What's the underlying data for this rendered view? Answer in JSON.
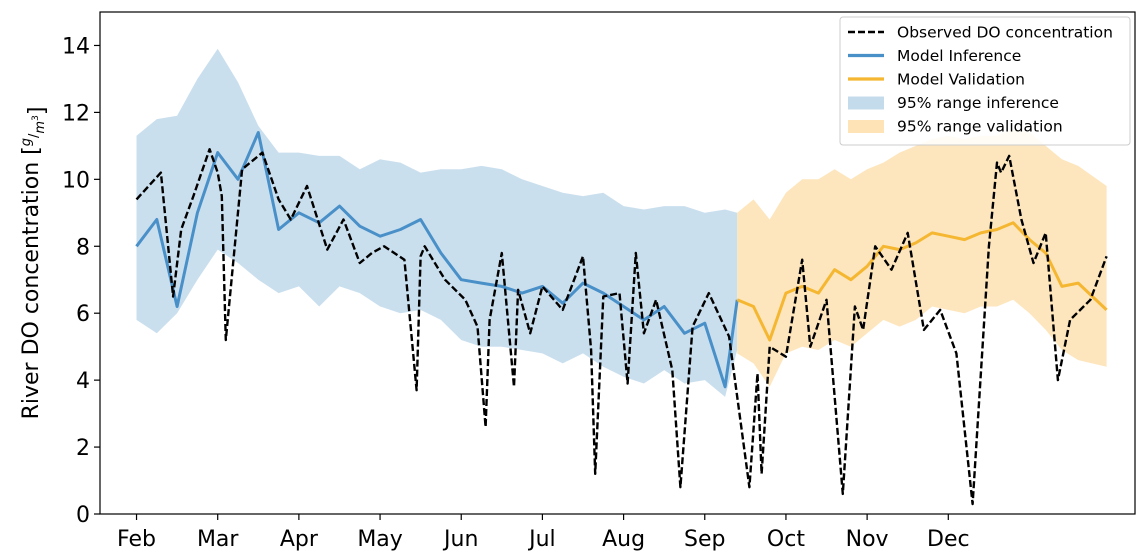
{
  "chart_data": {
    "type": "line",
    "ylabel": "River DO concentration [",
    "ylabel_unit_num": "g",
    "ylabel_unit_den": "m",
    "ylabel_unit_exp": "3",
    "ylabel_close": "]",
    "ylim": [
      0,
      15
    ],
    "yticks": [
      0,
      2,
      4,
      6,
      8,
      10,
      12,
      14
    ],
    "xticks": [
      "Feb",
      "Mar",
      "Apr",
      "May",
      "Jun",
      "Jul",
      "Aug",
      "Sep",
      "Oct",
      "Nov",
      "Dec"
    ],
    "grid": false,
    "legend_position": "top-right",
    "split_month": 7.4,
    "legend": [
      {
        "label": "Observed DO concentration",
        "kind": "dashed",
        "color": "#000000"
      },
      {
        "label": "Model Inference",
        "kind": "line",
        "color": "#4a90c8"
      },
      {
        "label": "Model Validation",
        "kind": "line",
        "color": "#f5b731"
      },
      {
        "label": "95% range inference",
        "kind": "patch",
        "color": "#c4dbec"
      },
      {
        "label": "95% range validation",
        "kind": "patch",
        "color": "#fde3b6"
      }
    ],
    "series": [
      {
        "name": "Observed DO concentration",
        "x_month": [
          0.0,
          0.3,
          0.45,
          0.55,
          0.7,
          0.9,
          1.0,
          1.05,
          1.1,
          1.3,
          1.55,
          1.75,
          1.9,
          2.1,
          2.35,
          2.55,
          2.75,
          2.9,
          3.05,
          3.3,
          3.45,
          3.5,
          3.55,
          3.8,
          4.05,
          4.2,
          4.3,
          4.35,
          4.5,
          4.65,
          4.7,
          4.85,
          5.0,
          5.25,
          5.5,
          5.6,
          5.65,
          5.75,
          5.95,
          6.05,
          6.15,
          6.25,
          6.4,
          6.6,
          6.7,
          6.85,
          7.05,
          7.3,
          7.55,
          7.65,
          7.7,
          7.8,
          8.0,
          8.2,
          8.3,
          8.5,
          8.7,
          8.85,
          8.95,
          9.1,
          9.3,
          9.5,
          9.7,
          9.9,
          10.1,
          10.3,
          10.5,
          10.6,
          10.65,
          10.75,
          10.9,
          11.05,
          11.2,
          11.35,
          11.5,
          11.75,
          11.95
        ],
        "values": [
          9.4,
          10.2,
          6.5,
          8.5,
          9.5,
          10.9,
          10.2,
          9.5,
          5.2,
          10.3,
          10.8,
          9.4,
          8.8,
          9.8,
          7.9,
          8.8,
          7.5,
          7.8,
          8.0,
          7.6,
          3.7,
          7.7,
          8.0,
          7.0,
          6.4,
          5.6,
          2.6,
          5.8,
          7.8,
          3.8,
          6.7,
          5.4,
          6.8,
          6.1,
          7.7,
          4.9,
          1.2,
          6.5,
          6.6,
          3.9,
          7.8,
          5.4,
          6.4,
          4.3,
          0.8,
          5.6,
          6.6,
          5.3,
          0.8,
          4.2,
          1.2,
          5.0,
          4.7,
          7.6,
          5.0,
          6.4,
          0.6,
          6.2,
          5.5,
          8.0,
          7.3,
          8.4,
          5.5,
          6.1,
          4.8,
          0.3,
          8.0,
          10.5,
          10.2,
          10.7,
          8.8,
          7.5,
          8.4,
          4.0,
          5.8,
          6.4,
          7.7
        ]
      },
      {
        "name": "Model Inference",
        "x_month": [
          0.0,
          0.25,
          0.5,
          0.75,
          1.0,
          1.25,
          1.5,
          1.75,
          2.0,
          2.25,
          2.5,
          2.75,
          3.0,
          3.25,
          3.5,
          3.75,
          4.0,
          4.25,
          4.5,
          4.75,
          5.0,
          5.25,
          5.5,
          5.75,
          6.0,
          6.25,
          6.5,
          6.75,
          7.0,
          7.25,
          7.4
        ],
        "values": [
          8.0,
          8.8,
          6.2,
          9.0,
          10.8,
          10.0,
          11.4,
          8.5,
          9.0,
          8.7,
          9.2,
          8.6,
          8.3,
          8.5,
          8.8,
          7.8,
          7.0,
          6.9,
          6.8,
          6.6,
          6.8,
          6.3,
          6.9,
          6.6,
          6.2,
          5.8,
          6.2,
          5.4,
          5.7,
          3.8,
          6.4
        ]
      },
      {
        "name": "Model Validation",
        "x_month": [
          7.4,
          7.6,
          7.8,
          8.0,
          8.2,
          8.4,
          8.6,
          8.8,
          9.0,
          9.2,
          9.4,
          9.6,
          9.8,
          10.0,
          10.2,
          10.4,
          10.6,
          10.8,
          11.0,
          11.2,
          11.4,
          11.6,
          11.95
        ],
        "values": [
          6.4,
          6.2,
          5.2,
          6.6,
          6.8,
          6.6,
          7.3,
          7.0,
          7.4,
          8.0,
          7.9,
          8.1,
          8.4,
          8.3,
          8.2,
          8.4,
          8.5,
          8.7,
          8.2,
          7.8,
          6.8,
          6.9,
          6.1
        ]
      }
    ],
    "bands": [
      {
        "name": "95% range inference",
        "x_month": [
          0.0,
          0.25,
          0.5,
          0.75,
          1.0,
          1.25,
          1.5,
          1.75,
          2.0,
          2.25,
          2.5,
          2.75,
          3.0,
          3.25,
          3.5,
          3.75,
          4.0,
          4.25,
          4.5,
          4.75,
          5.0,
          5.25,
          5.5,
          5.75,
          6.0,
          6.25,
          6.5,
          6.75,
          7.0,
          7.25,
          7.4
        ],
        "upper": [
          11.3,
          11.8,
          11.9,
          13.0,
          13.9,
          12.9,
          11.6,
          10.8,
          10.8,
          10.7,
          10.7,
          10.3,
          10.6,
          10.5,
          10.2,
          10.3,
          10.3,
          10.4,
          10.3,
          10.0,
          9.8,
          9.6,
          9.5,
          9.6,
          9.2,
          9.1,
          9.2,
          9.2,
          9.0,
          9.1,
          9.0
        ],
        "lower": [
          5.8,
          5.4,
          6.0,
          7.0,
          7.9,
          7.5,
          7.0,
          6.6,
          6.8,
          6.2,
          6.8,
          6.6,
          6.2,
          6.0,
          6.1,
          5.8,
          5.2,
          5.0,
          5.0,
          4.9,
          4.8,
          4.5,
          4.8,
          4.4,
          4.1,
          3.9,
          4.3,
          3.9,
          4.0,
          3.5,
          4.9
        ]
      },
      {
        "name": "95% range validation",
        "x_month": [
          7.4,
          7.6,
          7.8,
          8.0,
          8.2,
          8.4,
          8.6,
          8.8,
          9.0,
          9.2,
          9.4,
          9.6,
          9.8,
          10.0,
          10.2,
          10.4,
          10.6,
          10.8,
          11.0,
          11.2,
          11.4,
          11.6,
          11.95
        ],
        "upper": [
          9.0,
          9.4,
          8.8,
          9.6,
          10.0,
          10.0,
          10.3,
          10.0,
          10.3,
          10.5,
          10.8,
          11.0,
          11.2,
          11.3,
          11.2,
          11.3,
          11.3,
          11.5,
          11.4,
          11.0,
          10.6,
          10.4,
          9.8
        ],
        "lower": [
          4.8,
          4.5,
          3.8,
          4.8,
          5.0,
          4.9,
          5.2,
          5.0,
          5.4,
          5.8,
          5.6,
          5.8,
          6.2,
          6.1,
          6.0,
          6.2,
          6.2,
          6.4,
          6.0,
          5.5,
          4.9,
          4.6,
          4.4
        ]
      }
    ]
  }
}
